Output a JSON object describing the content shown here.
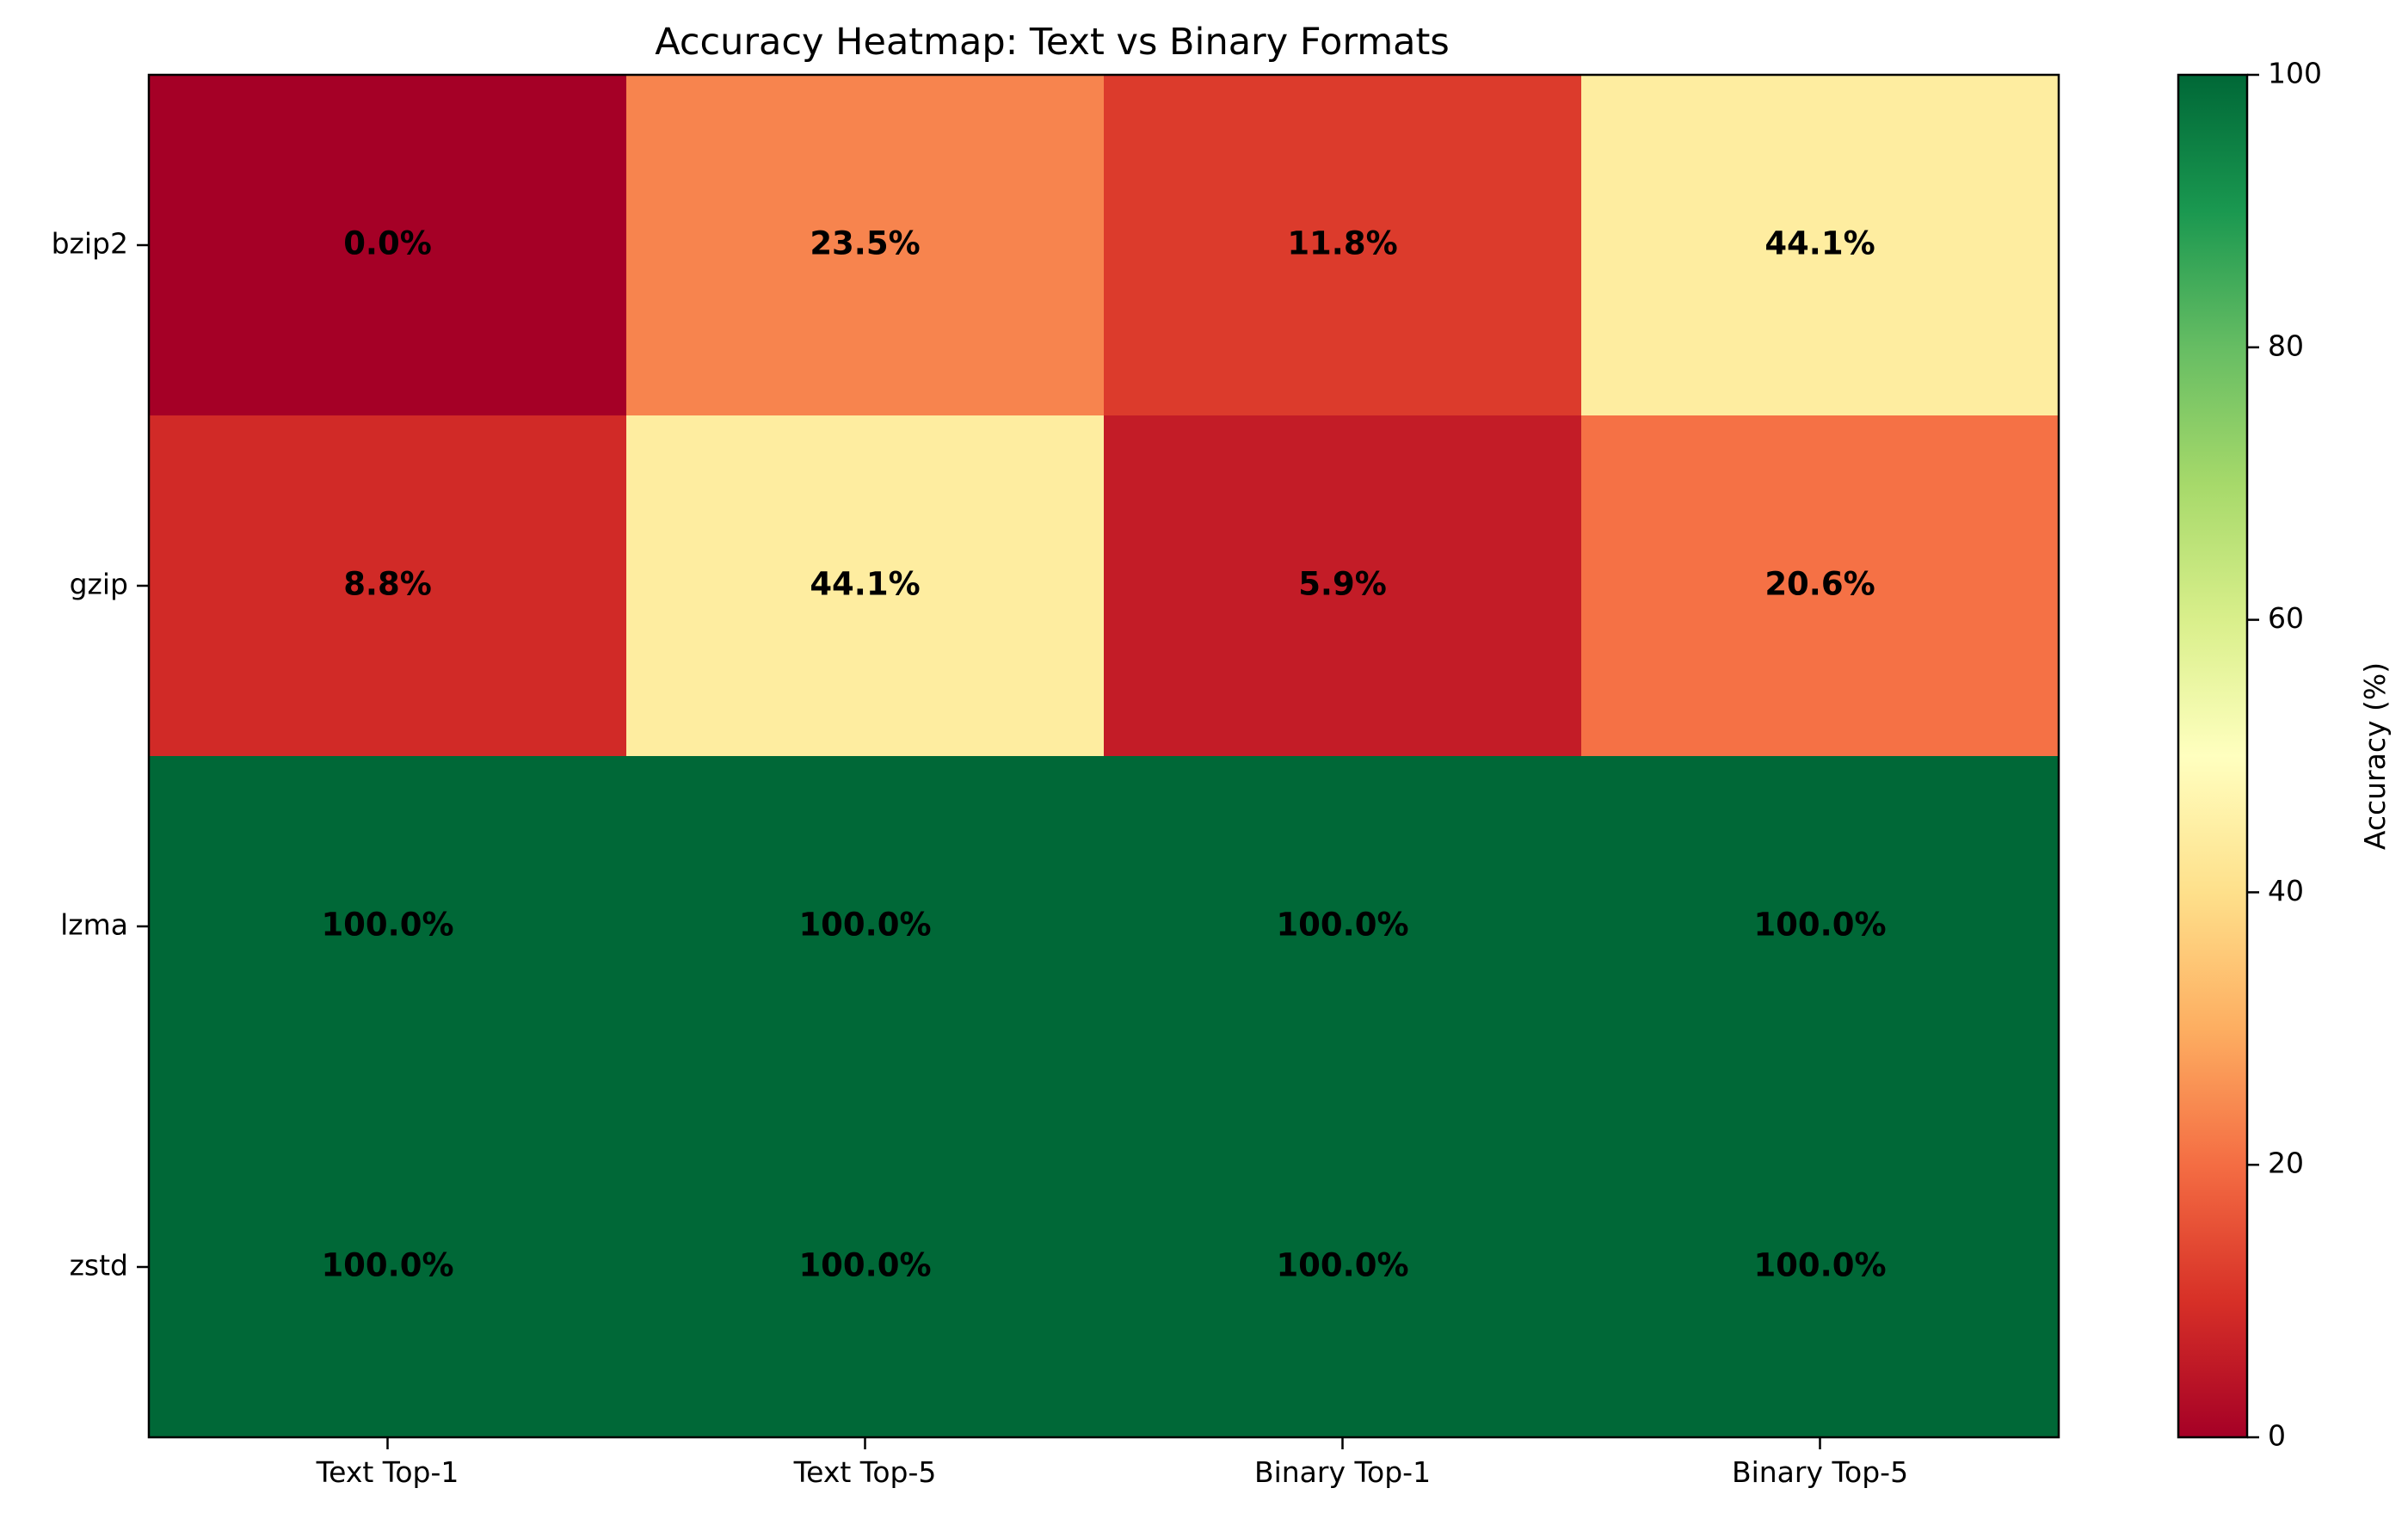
{
  "chart_data": {
    "type": "heatmap",
    "title": "Accuracy Heatmap: Text vs Binary Formats",
    "xlabel": "",
    "ylabel": "",
    "columns": [
      "Text Top-1",
      "Text Top-5",
      "Binary Top-1",
      "Binary Top-5"
    ],
    "rows": [
      "bzip2",
      "gzip",
      "lzma",
      "zstd"
    ],
    "values": [
      [
        0.0,
        23.5,
        11.8,
        44.1
      ],
      [
        8.8,
        44.1,
        5.9,
        20.6
      ],
      [
        100.0,
        100.0,
        100.0,
        100.0
      ],
      [
        100.0,
        100.0,
        100.0,
        100.0
      ]
    ],
    "cell_labels": [
      [
        "0.0%",
        "23.5%",
        "11.8%",
        "44.1%"
      ],
      [
        "8.8%",
        "44.1%",
        "5.9%",
        "20.6%"
      ],
      [
        "100.0%",
        "100.0%",
        "100.0%",
        "100.0%"
      ],
      [
        "100.0%",
        "100.0%",
        "100.0%",
        "100.0%"
      ]
    ],
    "colormap": "RdYlGn",
    "vmin": 0,
    "vmax": 100,
    "colorbar": {
      "label": "Accuracy (%)",
      "ticks": [
        0,
        20,
        40,
        60,
        80,
        100
      ],
      "tick_labels": [
        "0",
        "20",
        "40",
        "60",
        "80",
        "100"
      ]
    },
    "grid": false,
    "legend": "none"
  }
}
